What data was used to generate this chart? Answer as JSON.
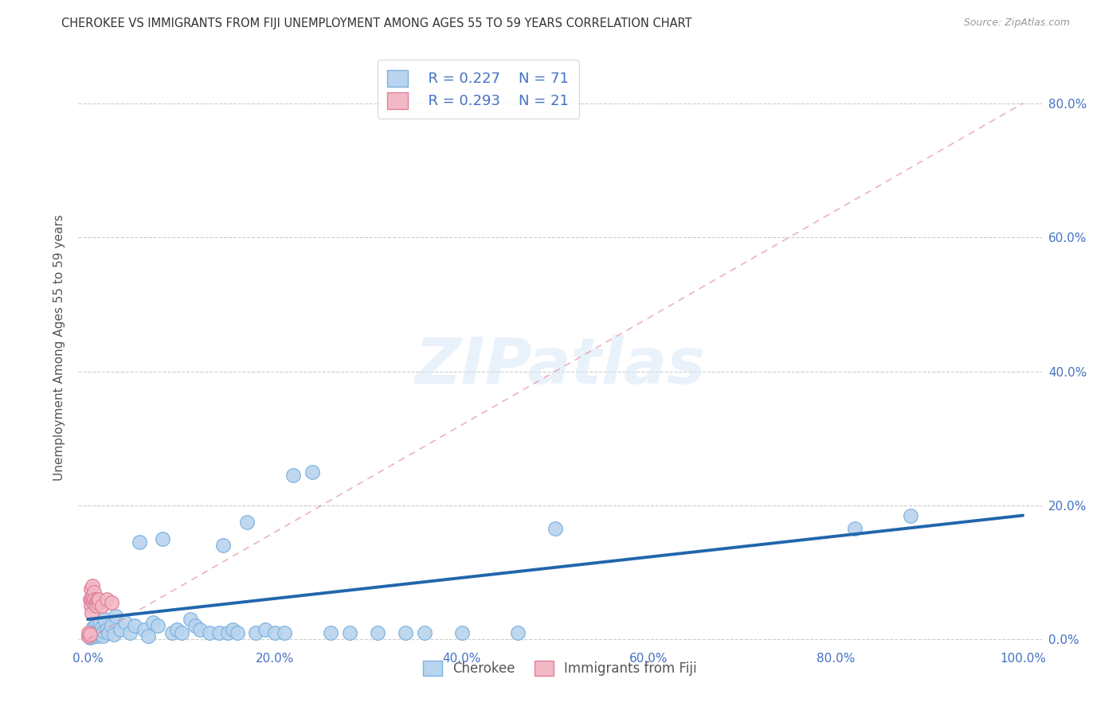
{
  "title": "CHEROKEE VS IMMIGRANTS FROM FIJI UNEMPLOYMENT AMONG AGES 55 TO 59 YEARS CORRELATION CHART",
  "source": "Source: ZipAtlas.com",
  "ylabel": "Unemployment Among Ages 55 to 59 years",
  "xlim": [
    -0.01,
    1.02
  ],
  "ylim": [
    -0.01,
    0.88
  ],
  "xticks": [
    0.0,
    0.2,
    0.4,
    0.6,
    0.8,
    1.0
  ],
  "xticklabels": [
    "0.0%",
    "20.0%",
    "40.0%",
    "60.0%",
    "80.0%",
    "100.0%"
  ],
  "yticks": [
    0.0,
    0.2,
    0.4,
    0.6,
    0.8
  ],
  "yticklabels": [
    "0.0%",
    "20.0%",
    "40.0%",
    "60.0%",
    "80.0%"
  ],
  "cherokee_color": "#b8d4ee",
  "fiji_color": "#f2b8c6",
  "cherokee_edge": "#7fb3e0",
  "fiji_edge": "#e08098",
  "trend_blue_color": "#2166ac",
  "trend_pink_color": "#e08098",
  "legend_R1": "R = 0.227",
  "legend_N1": "N = 71",
  "legend_R2": "R = 0.293",
  "legend_N2": "N = 21",
  "legend_label1": "Cherokee",
  "legend_label2": "Immigrants from Fiji",
  "watermark": "ZIPatlas",
  "blue_trend_x0": 0.0,
  "blue_trend_y0": 0.03,
  "blue_trend_x1": 1.0,
  "blue_trend_y1": 0.185,
  "pink_trend_x0": 0.0,
  "pink_trend_y0": 0.0,
  "pink_trend_x1": 1.0,
  "pink_trend_y1": 0.8,
  "cherokee_x": [
    0.001,
    0.002,
    0.002,
    0.003,
    0.003,
    0.003,
    0.004,
    0.004,
    0.005,
    0.005,
    0.006,
    0.006,
    0.007,
    0.007,
    0.008,
    0.008,
    0.009,
    0.01,
    0.01,
    0.011,
    0.012,
    0.013,
    0.014,
    0.015,
    0.016,
    0.017,
    0.018,
    0.02,
    0.022,
    0.025,
    0.028,
    0.03,
    0.035,
    0.04,
    0.045,
    0.05,
    0.055,
    0.06,
    0.065,
    0.07,
    0.075,
    0.08,
    0.09,
    0.095,
    0.1,
    0.11,
    0.115,
    0.12,
    0.13,
    0.14,
    0.145,
    0.15,
    0.155,
    0.16,
    0.17,
    0.18,
    0.19,
    0.2,
    0.21,
    0.22,
    0.24,
    0.26,
    0.28,
    0.31,
    0.34,
    0.36,
    0.4,
    0.46,
    0.5,
    0.82,
    0.88
  ],
  "cherokee_y": [
    0.005,
    0.008,
    0.003,
    0.01,
    0.005,
    0.008,
    0.012,
    0.006,
    0.015,
    0.004,
    0.01,
    0.018,
    0.008,
    0.013,
    0.006,
    0.02,
    0.01,
    0.015,
    0.005,
    0.012,
    0.008,
    0.025,
    0.01,
    0.018,
    0.005,
    0.012,
    0.03,
    0.015,
    0.01,
    0.02,
    0.008,
    0.035,
    0.015,
    0.025,
    0.01,
    0.02,
    0.145,
    0.015,
    0.005,
    0.025,
    0.02,
    0.15,
    0.01,
    0.015,
    0.01,
    0.03,
    0.02,
    0.015,
    0.01,
    0.01,
    0.14,
    0.01,
    0.015,
    0.01,
    0.175,
    0.01,
    0.015,
    0.01,
    0.01,
    0.245,
    0.25,
    0.01,
    0.01,
    0.01,
    0.01,
    0.01,
    0.01,
    0.01,
    0.165,
    0.165,
    0.185
  ],
  "fiji_x": [
    0.001,
    0.001,
    0.002,
    0.002,
    0.003,
    0.003,
    0.004,
    0.004,
    0.005,
    0.005,
    0.006,
    0.007,
    0.007,
    0.008,
    0.009,
    0.01,
    0.011,
    0.012,
    0.015,
    0.02,
    0.025
  ],
  "fiji_y": [
    0.005,
    0.01,
    0.008,
    0.06,
    0.05,
    0.075,
    0.04,
    0.06,
    0.08,
    0.065,
    0.055,
    0.07,
    0.06,
    0.055,
    0.05,
    0.06,
    0.055,
    0.06,
    0.05,
    0.06,
    0.055
  ]
}
